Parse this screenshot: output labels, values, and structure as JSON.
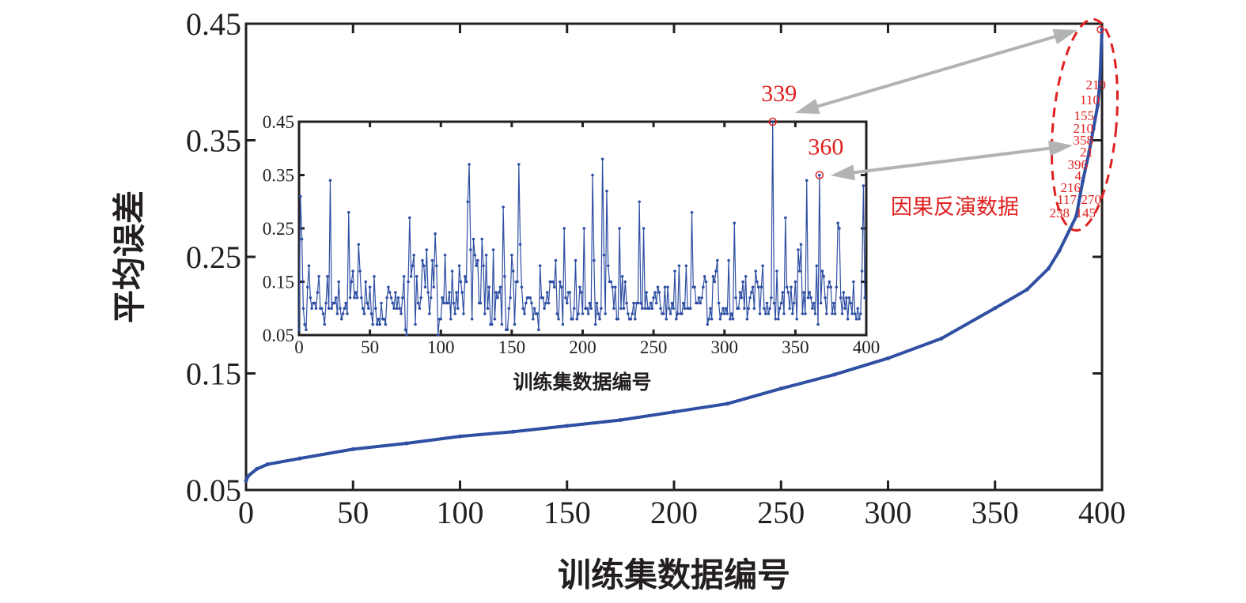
{
  "chart_data": [
    {
      "type": "line",
      "role": "main",
      "xlabel": "训练集数据编号",
      "ylabel": "平均误差",
      "xlim": [
        0,
        400
      ],
      "ylim": [
        0.05,
        0.45
      ],
      "xticks": [
        "0",
        "50",
        "100",
        "150",
        "200",
        "250",
        "300",
        "350",
        "400"
      ],
      "yticks": [
        "0.05",
        "0.15",
        "0.25",
        "0.35",
        "0.45"
      ],
      "grid": false,
      "series_color": "#2f4fa3",
      "points": [
        [
          0,
          0.058
        ],
        [
          1,
          0.062
        ],
        [
          5,
          0.068
        ],
        [
          10,
          0.072
        ],
        [
          25,
          0.077
        ],
        [
          50,
          0.085
        ],
        [
          75,
          0.09
        ],
        [
          100,
          0.096
        ],
        [
          125,
          0.1
        ],
        [
          150,
          0.105
        ],
        [
          175,
          0.11
        ],
        [
          200,
          0.117
        ],
        [
          225,
          0.124
        ],
        [
          250,
          0.137
        ],
        [
          275,
          0.149
        ],
        [
          300,
          0.163
        ],
        [
          325,
          0.18
        ],
        [
          350,
          0.206
        ],
        [
          365,
          0.222
        ],
        [
          375,
          0.24
        ],
        [
          380,
          0.255
        ],
        [
          388,
          0.285
        ],
        [
          391,
          0.315
        ],
        [
          394,
          0.34
        ],
        [
          396,
          0.36
        ],
        [
          398,
          0.38
        ],
        [
          399,
          0.4
        ],
        [
          400,
          0.445
        ]
      ],
      "annotation": {
        "label": "因果反演数据",
        "color": "#e02020",
        "ids": [
          "219",
          "110",
          "155",
          "210",
          "358",
          "21",
          "396",
          "4",
          "216",
          "117",
          "270",
          "238",
          "145"
        ]
      }
    },
    {
      "type": "line",
      "role": "inset",
      "xlabel": "训练集数据编号",
      "xlim": [
        0,
        400
      ],
      "ylim": [
        0.05,
        0.45
      ],
      "xticks": [
        "0",
        "50",
        "100",
        "150",
        "200",
        "250",
        "300",
        "350",
        "400"
      ],
      "yticks": [
        "0.05",
        "0.15",
        "0.25",
        "0.35",
        "0.45"
      ],
      "grid": false,
      "series_color": "#2f4fa3",
      "highlight_color": "#e02020",
      "highlights": [
        {
          "label": "339",
          "index": 334
        },
        {
          "label": "360",
          "index": 367
        }
      ],
      "values": [
        0.06,
        0.31,
        0.23,
        0.1,
        0.07,
        0.06,
        0.14,
        0.18,
        0.12,
        0.1,
        0.11,
        0.11,
        0.1,
        0.13,
        0.16,
        0.1,
        0.1,
        0.09,
        0.07,
        0.11,
        0.16,
        0.1,
        0.34,
        0.1,
        0.11,
        0.11,
        0.12,
        0.09,
        0.15,
        0.1,
        0.08,
        0.09,
        0.1,
        0.11,
        0.09,
        0.28,
        0.12,
        0.15,
        0.17,
        0.12,
        0.13,
        0.12,
        0.22,
        0.17,
        0.12,
        0.1,
        0.09,
        0.15,
        0.11,
        0.1,
        0.14,
        0.09,
        0.07,
        0.16,
        0.1,
        0.07,
        0.08,
        0.07,
        0.11,
        0.08,
        0.08,
        0.07,
        0.12,
        0.14,
        0.13,
        0.12,
        0.11,
        0.1,
        0.13,
        0.1,
        0.12,
        0.1,
        0.09,
        0.12,
        0.16,
        0.06,
        0.05,
        0.15,
        0.27,
        0.16,
        0.18,
        0.2,
        0.07,
        0.16,
        0.11,
        0.1,
        0.12,
        0.19,
        0.18,
        0.14,
        0.21,
        0.13,
        0.09,
        0.12,
        0.19,
        0.14,
        0.24,
        0.18,
        0.05,
        0.08,
        0.08,
        0.12,
        0.11,
        0.2,
        0.11,
        0.11,
        0.13,
        0.08,
        0.17,
        0.11,
        0.09,
        0.13,
        0.1,
        0.18,
        0.15,
        0.13,
        0.09,
        0.16,
        0.15,
        0.3,
        0.37,
        0.21,
        0.08,
        0.23,
        0.2,
        0.18,
        0.19,
        0.11,
        0.11,
        0.23,
        0.18,
        0.09,
        0.2,
        0.1,
        0.14,
        0.07,
        0.07,
        0.21,
        0.08,
        0.13,
        0.12,
        0.13,
        0.14,
        0.07,
        0.29,
        0.16,
        0.06,
        0.06,
        0.1,
        0.12,
        0.2,
        0.17,
        0.07,
        0.15,
        0.15,
        0.37,
        0.22,
        0.14,
        0.1,
        0.09,
        0.11,
        0.12,
        0.12,
        0.12,
        0.11,
        0.08,
        0.1,
        0.09,
        0.09,
        0.06,
        0.18,
        0.12,
        0.12,
        0.1,
        0.11,
        0.13,
        0.11,
        0.15,
        0.15,
        0.15,
        0.14,
        0.19,
        0.09,
        0.08,
        0.15,
        0.14,
        0.07,
        0.25,
        0.12,
        0.11,
        0.13,
        0.13,
        0.08,
        0.08,
        0.1,
        0.19,
        0.08,
        0.09,
        0.14,
        0.13,
        0.09,
        0.25,
        0.1,
        0.1,
        0.09,
        0.11,
        0.1,
        0.35,
        0.19,
        0.07,
        0.11,
        0.09,
        0.08,
        0.1,
        0.38,
        0.2,
        0.09,
        0.32,
        0.18,
        0.15,
        0.15,
        0.14,
        0.1,
        0.14,
        0.08,
        0.08,
        0.25,
        0.1,
        0.16,
        0.1,
        0.15,
        0.11,
        0.09,
        0.08,
        0.08,
        0.09,
        0.11,
        0.08,
        0.11,
        0.11,
        0.3,
        0.11,
        0.1,
        0.25,
        0.1,
        0.13,
        0.1,
        0.1,
        0.11,
        0.1,
        0.12,
        0.13,
        0.11,
        0.14,
        0.13,
        0.1,
        0.09,
        0.09,
        0.14,
        0.08,
        0.14,
        0.1,
        0.09,
        0.11,
        0.1,
        0.17,
        0.08,
        0.09,
        0.18,
        0.09,
        0.09,
        0.11,
        0.1,
        0.18,
        0.1,
        0.1,
        0.1,
        0.28,
        0.14,
        0.14,
        0.11,
        0.11,
        0.12,
        0.11,
        0.12,
        0.14,
        0.16,
        0.15,
        0.07,
        0.08,
        0.1,
        0.08,
        0.16,
        0.15,
        0.17,
        0.19,
        0.11,
        0.08,
        0.09,
        0.1,
        0.09,
        0.1,
        0.09,
        0.19,
        0.08,
        0.09,
        0.08,
        0.26,
        0.12,
        0.1,
        0.1,
        0.13,
        0.12,
        0.15,
        0.1,
        0.16,
        0.08,
        0.1,
        0.12,
        0.13,
        0.14,
        0.1,
        0.17,
        0.15,
        0.14,
        0.09,
        0.14,
        0.18,
        0.1,
        0.09,
        0.11,
        0.09,
        0.1,
        0.12,
        0.45,
        0.11,
        0.08,
        0.17,
        0.08,
        0.1,
        0.11,
        0.13,
        0.09,
        0.27,
        0.14,
        0.13,
        0.1,
        0.14,
        0.09,
        0.11,
        0.15,
        0.08,
        0.21,
        0.17,
        0.22,
        0.09,
        0.13,
        0.09,
        0.34,
        0.12,
        0.13,
        0.12,
        0.1,
        0.11,
        0.09,
        0.18,
        0.07,
        0.35,
        0.11,
        0.17,
        0.16,
        0.12,
        0.09,
        0.14,
        0.15,
        0.14,
        0.09,
        0.11,
        0.09,
        0.14,
        0.26,
        0.25,
        0.12,
        0.09,
        0.13,
        0.1,
        0.12,
        0.08,
        0.12,
        0.11,
        0.09,
        0.15,
        0.09,
        0.08,
        0.1,
        0.08,
        0.09,
        0.17,
        0.33,
        0.12
      ]
    }
  ]
}
